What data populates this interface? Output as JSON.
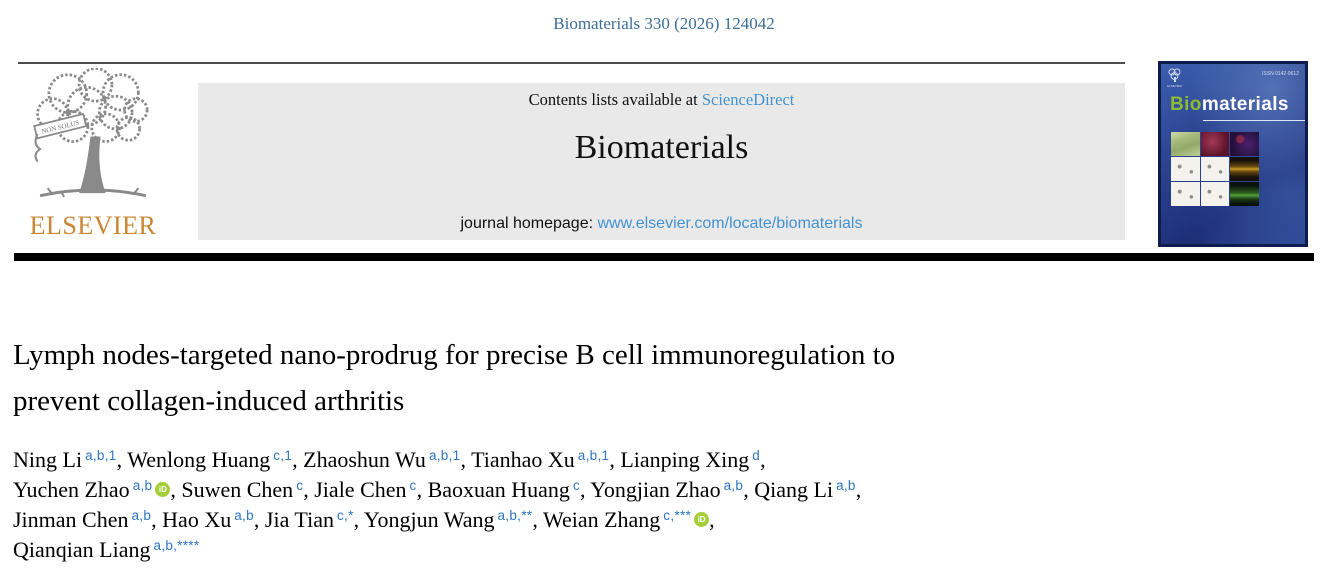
{
  "citation": "Biomaterials 330 (2026) 124042",
  "header": {
    "contents_prefix": "Contents lists available at ",
    "sciencedirect_label": "ScienceDirect",
    "journal_name": "Biomaterials",
    "homepage_prefix": "journal homepage: ",
    "homepage_url": "www.elsevier.com/locate/biomaterials"
  },
  "logo": {
    "wordmark": "ELSEVIER",
    "ribbon_text": "NON SOLUS"
  },
  "cover": {
    "title_bio": "Bio",
    "title_rest": "materials",
    "issn": "ISSN 0142-9612",
    "elsevier_label": "ELSEVIER"
  },
  "article": {
    "title_lines": [
      "Lymph nodes-targeted nano-prodrug for precise B cell immunoregulation to",
      "prevent collagen-induced arthritis"
    ]
  },
  "authors": {
    "orcid_icon_label": "iD",
    "lines": [
      [
        {
          "name": "Ning Li",
          "sup": "a,b,1"
        },
        {
          "name": "Wenlong Huang",
          "sup": "c,1"
        },
        {
          "name": "Zhaoshun Wu",
          "sup": "a,b,1"
        },
        {
          "name": "Tianhao Xu",
          "sup": "a,b,1"
        },
        {
          "name": "Lianping Xing",
          "sup": "d"
        }
      ],
      [
        {
          "name": "Yuchen Zhao",
          "sup": "a,b",
          "orcid": true
        },
        {
          "name": "Suwen Chen",
          "sup": "c"
        },
        {
          "name": "Jiale Chen",
          "sup": "c"
        },
        {
          "name": "Baoxuan Huang",
          "sup": "c"
        },
        {
          "name": "Yongjian Zhao",
          "sup": "a,b"
        },
        {
          "name": "Qiang Li",
          "sup": "a,b"
        }
      ],
      [
        {
          "name": "Jinman Chen",
          "sup": "a,b"
        },
        {
          "name": "Hao Xu",
          "sup": "a,b"
        },
        {
          "name": "Jia Tian",
          "sup": "c,*"
        },
        {
          "name": "Yongjun Wang",
          "sup": "a,b,**"
        },
        {
          "name": "Weian Zhang",
          "sup": "c,***",
          "orcid": true
        }
      ],
      [
        {
          "name": "Qianqian Liang",
          "sup": "a,b,****"
        }
      ]
    ]
  },
  "colors": {
    "link_blue": "#4292cf",
    "citation_blue": "#3c6e96",
    "superscript_blue": "#2e75c3",
    "orcid_green": "#a6ce39",
    "elsevier_orange": "#c98533",
    "banner_gray": "#e9e9e9"
  }
}
